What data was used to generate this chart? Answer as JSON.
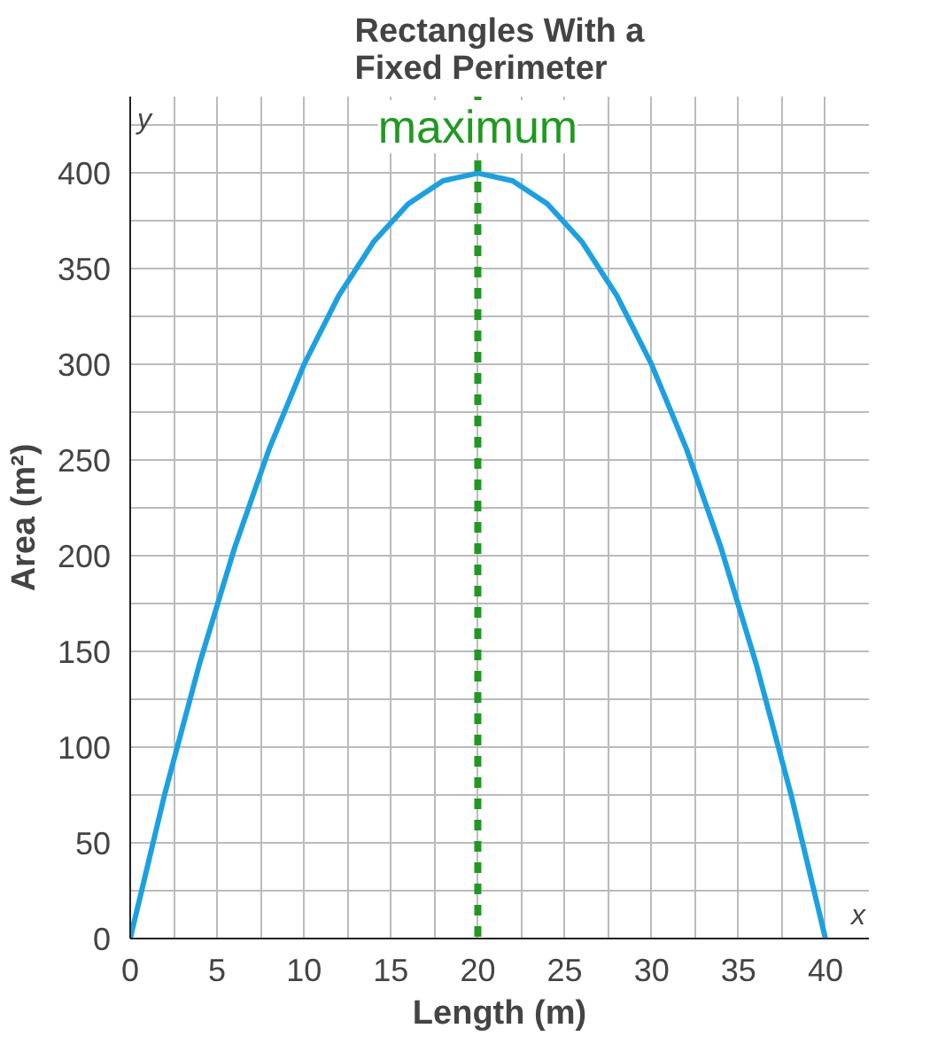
{
  "chart_data": {
    "type": "line",
    "title": "Rectangles With a\nFixed Perimeter",
    "xlabel": "Length (m)",
    "ylabel": "Area (m²)",
    "x": [
      0,
      2,
      4,
      6,
      8,
      10,
      12,
      14,
      16,
      18,
      20,
      22,
      24,
      26,
      28,
      30,
      32,
      34,
      36,
      38,
      40
    ],
    "series": [
      {
        "color": "#1ba1e2",
        "values": [
          0,
          76,
          144,
          204,
          256,
          300,
          336,
          364,
          384,
          396,
          400,
          396,
          384,
          364,
          336,
          300,
          256,
          204,
          144,
          76,
          0
        ]
      }
    ],
    "xlim": [
      0,
      42.5
    ],
    "ylim": [
      0,
      440
    ],
    "xticks": [
      0,
      5,
      10,
      15,
      20,
      25,
      30,
      35,
      40
    ],
    "yticks": [
      0,
      50,
      100,
      150,
      200,
      250,
      300,
      350,
      400
    ],
    "grid": true,
    "marker": "none",
    "line_style": "solid",
    "ref_lines": [
      {
        "axis": "x",
        "value": 20,
        "label": "maximum",
        "color": "#1f9a1f",
        "line_style": "dashed"
      }
    ],
    "annotations": [
      "x",
      "y"
    ]
  }
}
